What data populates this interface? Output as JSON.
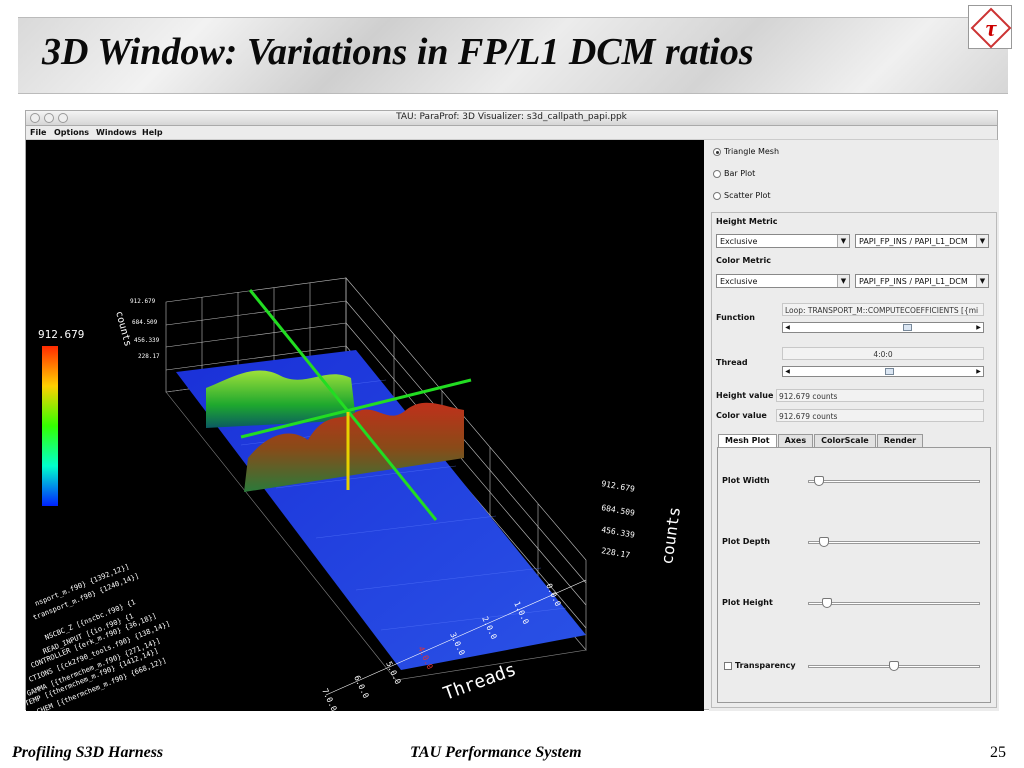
{
  "slide": {
    "title": "3D Window: Variations in FP/L1 DCM ratios",
    "footer_left": "Profiling S3D Harness",
    "footer_center": "TAU Performance System",
    "page_number": "25",
    "logo_icon": "tau-logo-icon"
  },
  "window": {
    "title": "TAU: ParaProf: 3D Visualizer: s3d_callpath_papi.ppk",
    "menu": [
      "File",
      "Options",
      "Windows",
      "Help"
    ]
  },
  "canvas": {
    "legend_max": "912.679",
    "left_axis_ticks": [
      "912.679",
      "684.509",
      "456.339",
      "228.17"
    ],
    "left_axis_title": "counts",
    "right_axis_ticks": [
      "912.679",
      "684.509",
      "456.339",
      "228.17"
    ],
    "right_axis_title": "counts",
    "thread_ticks": [
      "0.0.0",
      "1.0.0",
      "2.0.0",
      "3.0.0",
      "4.0.0",
      "5.0.0",
      "6.0.0",
      "7.0.0"
    ],
    "thread_axis_title": "Threads",
    "function_labels": [
      "NSCBC_Z [{nscbc.f90} {1",
      "READ_INPUT [{io.f90} {1",
      "CONTROLLER [{erk_m.f90} {36,18}]",
      "CTIONS [{ck2f90_tools.f90} {138,14}]",
      "GAMMA [{thermchem_m.f90} {271,14}]",
      "TEMP [{thermchem_m.f90} {1412,14}]",
      "CHEM [{thermchem_m.f90} {668,12}]",
      "nsport_m.f90} {1392,12}]",
      "transport_m.f90} {1240,14}]"
    ]
  },
  "panel": {
    "plot_types": [
      {
        "label": "Triangle Mesh",
        "selected": true
      },
      {
        "label": "Bar Plot",
        "selected": false
      },
      {
        "label": "Scatter Plot",
        "selected": false
      }
    ],
    "height_metric_label": "Height Metric",
    "height_value_type": "Exclusive",
    "height_metric": "PAPI_FP_INS / PAPI_L1_DCM",
    "color_metric_label": "Color Metric",
    "color_value_type": "Exclusive",
    "color_metric": "PAPI_FP_INS / PAPI_L1_DCM",
    "function_label": "Function",
    "function_value": "Loop: TRANSPORT_M::COMPUTECOEFFICIENTS [{mi",
    "thread_label": "Thread",
    "thread_value": "4:0:0",
    "height_value_label": "Height value",
    "height_value": "912.679 counts",
    "color_value_label": "Color value",
    "color_value": "912.679 counts",
    "tabs": [
      "Mesh Plot",
      "Axes",
      "ColorScale",
      "Render"
    ],
    "plot_width_label": "Plot Width",
    "plot_depth_label": "Plot Depth",
    "plot_height_label": "Plot Height",
    "transparency_label": "Transparency",
    "sliders": {
      "plot_width": 0.03,
      "plot_depth": 0.06,
      "plot_height": 0.08,
      "transparency": 0.5
    }
  }
}
